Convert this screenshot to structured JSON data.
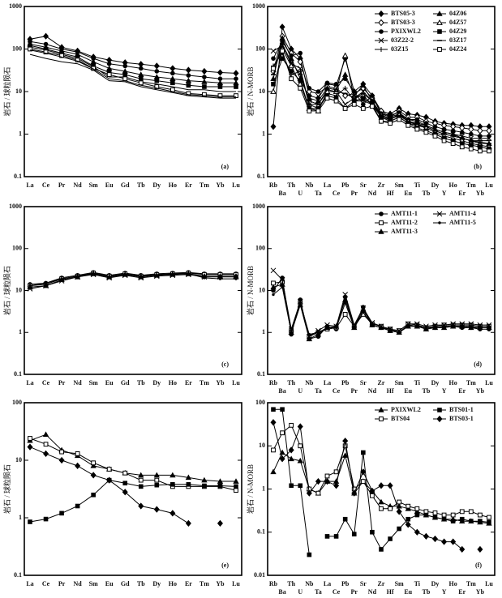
{
  "chart_data": [
    {
      "type": "line",
      "label": "(a)",
      "ylabel": "岩石 / 球粒陨石",
      "log_y": true,
      "categories": [
        "La",
        "Ce",
        "Pr",
        "Nd",
        "Sm",
        "Eu",
        "Gd",
        "Tb",
        "Dy",
        "Ho",
        "Er",
        "Tm",
        "Yb",
        "Lu"
      ],
      "ylim": [
        0.1,
        1000
      ],
      "yticks": [
        0.1,
        1,
        10,
        100,
        1000
      ],
      "series": [
        {
          "color": "#000",
          "marker": "diamond",
          "values": [
            170,
            200,
            110,
            90,
            65,
            55,
            48,
            44,
            40,
            35,
            32,
            30,
            28,
            27
          ]
        },
        {
          "color": "#000",
          "marker": "circle",
          "values": [
            150,
            130,
            100,
            85,
            60,
            45,
            40,
            35,
            30,
            27,
            24,
            22,
            20,
            20
          ]
        },
        {
          "color": "#000",
          "marker": "triangle",
          "values": [
            130,
            110,
            90,
            75,
            50,
            35,
            30,
            25,
            22,
            20,
            18,
            17,
            16,
            16
          ]
        },
        {
          "color": "#000",
          "marker": "square",
          "values": [
            120,
            100,
            80,
            65,
            40,
            28,
            25,
            20,
            18,
            16,
            14,
            13,
            13,
            13
          ]
        },
        {
          "color": "#000",
          "marker": "none",
          "values": [
            110,
            95,
            75,
            60,
            38,
            22,
            22,
            17,
            15,
            13,
            11,
            11,
            10,
            10
          ]
        },
        {
          "color": "#000",
          "marker": "square-open",
          "values": [
            100,
            85,
            70,
            55,
            35,
            25,
            20,
            16,
            13,
            11,
            9,
            8.5,
            8,
            8
          ]
        },
        {
          "color": "#000",
          "marker": "none",
          "values": [
            95,
            80,
            65,
            52,
            34,
            20,
            18,
            14,
            12,
            10,
            8.5,
            8,
            7.5,
            7.5
          ]
        },
        {
          "color": "#000",
          "marker": "none",
          "values": [
            75,
            60,
            50,
            45,
            32,
            18,
            17,
            13,
            11,
            9.5,
            8,
            7.5,
            7,
            7
          ]
        }
      ]
    },
    {
      "type": "line",
      "label": "(b)",
      "ylabel": "岩石 / N-MORB",
      "log_y": true,
      "legend": "upper right",
      "categories": [
        "Rb",
        "Ba",
        "Th",
        "U",
        "Nb",
        "Ta",
        "La",
        "Ce",
        "Pb",
        "Pr",
        "Sr",
        "Nd",
        "Zr",
        "Hf",
        "Sm",
        "Eu",
        "Ti",
        "Tb",
        "Dy",
        "Y",
        "Ho",
        "Er",
        "Tm",
        "Yb",
        "Lu"
      ],
      "ylim": [
        0.1,
        1000
      ],
      "yticks": [
        0.1,
        1,
        10,
        100,
        1000
      ],
      "series": [
        {
          "name": "BTS05-3",
          "color": "#000",
          "marker": "diamond",
          "values": [
            1.5,
            330,
            100,
            60,
            8,
            7,
            15,
            14,
            60,
            10,
            15,
            8,
            3.5,
            3,
            4,
            3,
            2.8,
            2.5,
            2,
            1.8,
            1.7,
            1.6,
            1.6,
            1.5,
            1.5
          ]
        },
        {
          "name": "BTS03-3",
          "color": "#000",
          "marker": "diamond-open",
          "values": [
            30,
            200,
            80,
            50,
            10,
            9,
            13,
            12,
            8,
            9,
            12,
            7,
            3.5,
            2.5,
            3.5,
            2.5,
            2.5,
            2,
            1.8,
            1.6,
            1.5,
            1.4,
            1.3,
            1.2,
            1.2
          ]
        },
        {
          "name": "PXIXWL2",
          "color": "#000",
          "marker": "circle",
          "values": [
            60,
            150,
            70,
            80,
            12,
            10,
            16,
            15,
            20,
            10,
            5,
            8,
            3,
            2.8,
            3.2,
            2.2,
            2.2,
            1.8,
            1.5,
            1.3,
            1.2,
            1.1,
            1,
            0.9,
            0.9
          ]
        },
        {
          "name": "03Z22-2",
          "color": "#000",
          "marker": "cross",
          "values": [
            90,
            120,
            45,
            35,
            5,
            5,
            10,
            10,
            5,
            7,
            10,
            6,
            2.5,
            2.2,
            3,
            2,
            1.8,
            1.6,
            1.3,
            1.1,
            1,
            0.9,
            0.8,
            0.8,
            0.8
          ]
        },
        {
          "name": "03Z15",
          "color": "#000",
          "marker": "plus",
          "values": [
            40,
            80,
            25,
            30,
            5,
            4,
            9,
            8,
            12,
            6,
            6,
            5,
            2,
            2,
            2.5,
            1.8,
            1.6,
            1.5,
            1.2,
            1,
            0.9,
            0.8,
            0.7,
            0.7,
            0.7
          ]
        },
        {
          "name": "04Z06",
          "color": "#000",
          "marker": "triangle",
          "values": [
            20,
            180,
            60,
            20,
            7,
            6,
            12,
            11,
            25,
            8,
            14,
            6,
            3,
            2.5,
            3,
            2.2,
            2,
            1.6,
            1.3,
            1.1,
            1,
            0.8,
            0.7,
            0.6,
            0.6
          ]
        },
        {
          "name": "04Z57",
          "color": "#000",
          "marker": "triangle-open",
          "values": [
            10,
            100,
            40,
            15,
            4,
            3.5,
            10,
            10,
            70,
            7,
            8,
            5,
            2.8,
            2.2,
            2.8,
            2,
            1.6,
            1.4,
            1.1,
            0.9,
            0.8,
            0.7,
            0.6,
            0.55,
            0.5
          ]
        },
        {
          "name": "04Z29",
          "color": "#000",
          "marker": "square",
          "values": [
            15,
            60,
            30,
            18,
            4,
            4,
            8,
            7,
            4,
            6,
            7,
            5,
            2.5,
            2,
            2.5,
            1.8,
            1.4,
            1.2,
            1,
            0.8,
            0.7,
            0.6,
            0.55,
            0.5,
            0.45
          ]
        },
        {
          "name": "03Z17",
          "color": "#000",
          "marker": "dash",
          "values": [
            25,
            130,
            50,
            25,
            6,
            5,
            11,
            10,
            9,
            7,
            9,
            6,
            2.8,
            2.3,
            2.7,
            2,
            1.7,
            1.5,
            1.2,
            1,
            0.9,
            0.8,
            0.7,
            0.65,
            0.6
          ]
        },
        {
          "name": "04Z24",
          "color": "#000",
          "marker": "square-open",
          "values": [
            35,
            90,
            20,
            12,
            3.5,
            3.5,
            7,
            6,
            4,
            5,
            4,
            4.5,
            2,
            1.8,
            2.2,
            1.6,
            1.3,
            1.1,
            0.9,
            0.7,
            0.6,
            0.5,
            0.45,
            0.4,
            0.4
          ]
        }
      ]
    },
    {
      "type": "line",
      "label": "(c)",
      "ylabel": "岩石 / 球粒陨石",
      "log_y": true,
      "categories": [
        "La",
        "Ce",
        "Pr",
        "Nd",
        "Sm",
        "Eu",
        "Gd",
        "Tb",
        "Dy",
        "Ho",
        "Er",
        "Tm",
        "Yb",
        "Lu"
      ],
      "ylim": [
        0.1,
        1000
      ],
      "yticks": [
        0.1,
        1,
        10,
        100,
        1000
      ],
      "series": [
        {
          "color": "#000",
          "marker": "circle",
          "values": [
            14,
            15,
            20,
            23,
            27,
            23,
            26,
            23,
            25,
            26,
            27,
            25,
            25,
            25
          ]
        },
        {
          "color": "#000",
          "marker": "square-open",
          "values": [
            13,
            14,
            19,
            22,
            26,
            22,
            25,
            22,
            24,
            25,
            26,
            24,
            24,
            24
          ]
        },
        {
          "color": "#000",
          "marker": "triangle",
          "values": [
            12,
            13,
            18,
            21,
            25,
            21,
            24,
            21,
            23,
            24,
            25,
            22,
            22,
            22
          ]
        },
        {
          "color": "#000",
          "marker": "cross",
          "values": [
            11,
            13,
            17,
            21,
            24,
            20,
            23,
            20,
            22,
            23,
            24,
            21,
            21,
            21
          ]
        },
        {
          "color": "#000",
          "marker": "dot",
          "values": [
            13,
            15,
            19,
            22,
            25,
            21,
            24,
            22,
            23,
            25,
            25,
            20,
            19,
            19
          ]
        }
      ]
    },
    {
      "type": "line",
      "label": "(d)",
      "ylabel": "岩石 / N-MORB",
      "log_y": true,
      "legend": "upper right",
      "categories": [
        "Rb",
        "Ba",
        "Th",
        "U",
        "Nb",
        "Ta",
        "La",
        "Ce",
        "Pb",
        "Pr",
        "Sr",
        "Nd",
        "Zr",
        "Hf",
        "Sm",
        "Eu",
        "Ti",
        "Tb",
        "Dy",
        "Y",
        "Ho",
        "Er",
        "Tm",
        "Yb",
        "Lu"
      ],
      "ylim": [
        0.1,
        1000
      ],
      "yticks": [
        0.1,
        1,
        10,
        100,
        1000
      ],
      "series": [
        {
          "name": "AMT11-1",
          "color": "#000",
          "marker": "circle",
          "values": [
            10,
            20,
            0.9,
            6,
            0.7,
            0.8,
            1.4,
            1.2,
            7,
            1.4,
            4,
            1.5,
            1.3,
            1.1,
            1,
            1.5,
            1.4,
            1.3,
            1.3,
            1.4,
            1.4,
            1.3,
            1.3,
            1.2,
            1.2
          ]
        },
        {
          "name": "AMT11-2",
          "color": "#000",
          "marker": "square-open",
          "values": [
            15,
            16,
            1.1,
            5,
            0.8,
            1,
            1.2,
            1.3,
            2.7,
            1.4,
            2.7,
            1.6,
            1.4,
            1.2,
            1.1,
            1.6,
            1.5,
            1.3,
            1.4,
            1.5,
            1.5,
            1.5,
            1.5,
            1.4,
            1.4
          ]
        },
        {
          "name": "AMT11-3",
          "color": "#000",
          "marker": "triangle",
          "values": [
            12,
            14,
            1,
            4.5,
            0.7,
            0.9,
            1.3,
            1.4,
            6,
            1.3,
            3.5,
            1.5,
            1.3,
            1.1,
            1,
            1.4,
            1.4,
            1.2,
            1.3,
            1.3,
            1.4,
            1.4,
            1.3,
            1.3,
            1.3
          ]
        },
        {
          "name": "AMT11-4",
          "color": "#000",
          "marker": "cross",
          "values": [
            30,
            18,
            1.2,
            5.5,
            0.8,
            1.1,
            1.5,
            1.4,
            8,
            1.5,
            3.8,
            1.7,
            1.4,
            1.2,
            1.1,
            1.6,
            1.6,
            1.4,
            1.5,
            1.5,
            1.6,
            1.6,
            1.6,
            1.5,
            1.5
          ]
        },
        {
          "name": "AMT11-5",
          "color": "#000",
          "marker": "dot",
          "values": [
            8,
            12,
            1,
            5,
            0.9,
            1,
            1.3,
            1.3,
            5,
            1.3,
            3,
            1.5,
            1.3,
            1.2,
            1,
            1.5,
            1.4,
            1.3,
            1.3,
            1.4,
            1.4,
            1.4,
            1.4,
            1.3,
            1.3
          ]
        }
      ]
    },
    {
      "type": "line",
      "label": "(e)",
      "ylabel": "岩石 / 球粒陨石",
      "log_y": true,
      "categories": [
        "La",
        "Ce",
        "Pr",
        "Nd",
        "Sm",
        "Eu",
        "Gd",
        "Tb",
        "Dy",
        "Ho",
        "Er",
        "Tm",
        "Yb",
        "Lu"
      ],
      "ylim": [
        0.1,
        100
      ],
      "yticks": [
        0.1,
        1,
        10,
        100
      ],
      "series": [
        {
          "color": "#000",
          "marker": "triangle",
          "values": [
            22,
            28,
            15,
            12,
            8,
            7,
            6,
            5.5,
            5.5,
            5.5,
            5,
            4.5,
            4.3,
            4.3
          ]
        },
        {
          "color": "#000",
          "marker": "square-open",
          "values": [
            24,
            19,
            14,
            13,
            9,
            7,
            6,
            4.5,
            4.5,
            3.5,
            3.5,
            3.5,
            3.5,
            3
          ]
        },
        {
          "color": "#000",
          "marker": "square",
          "values": [
            0.85,
            0.95,
            1.2,
            1.6,
            2.5,
            4.5,
            4,
            3.5,
            3.7,
            3.8,
            3.8,
            3.6,
            3.6,
            3.5
          ]
        },
        {
          "color": "#000",
          "marker": "diamond",
          "values": [
            17,
            13,
            10,
            8,
            5.5,
            4.5,
            2.8,
            1.6,
            1.4,
            1.2,
            0.8,
            null,
            0.8,
            null
          ]
        }
      ]
    },
    {
      "type": "line",
      "label": "(f)",
      "ylabel": "岩石 / N-MORB",
      "log_y": true,
      "legend": "upper right",
      "categories": [
        "Rb",
        "Ba",
        "Th",
        "U",
        "Nb",
        "Ta",
        "La",
        "Ce",
        "Pb",
        "Pr",
        "Sr",
        "Nd",
        "Zr",
        "Hf",
        "Sm",
        "Eu",
        "Ti",
        "Tb",
        "Dy",
        "Y",
        "Ho",
        "Er",
        "Tm",
        "Yb",
        "Lu"
      ],
      "ylim": [
        0.01,
        100
      ],
      "yticks": [
        0.01,
        0.1,
        1,
        10,
        100
      ],
      "series": [
        {
          "name": "PXIXWL2",
          "color": "#000",
          "marker": "triangle",
          "values": [
            2.5,
            7,
            5,
            4.5,
            1,
            0.8,
            1.5,
            1.5,
            6,
            0.8,
            1.5,
            0.9,
            0.5,
            0.4,
            0.4,
            0.35,
            0.3,
            0.25,
            0.22,
            0.2,
            0.2,
            0.18,
            0.18,
            0.17,
            0.16
          ]
        },
        {
          "name": "BTS04",
          "color": "#000",
          "marker": "square-open",
          "values": [
            8,
            20,
            30,
            10,
            1,
            0.8,
            2,
            2.5,
            10,
            1,
            1.5,
            0.7,
            0.35,
            0.35,
            0.5,
            0.4,
            0.35,
            0.3,
            0.28,
            0.25,
            0.25,
            0.3,
            0.3,
            0.25,
            0.22
          ]
        },
        {
          "name": "BTS01-1",
          "color": "#000",
          "marker": "square",
          "values": [
            70,
            70,
            1.2,
            1.2,
            0.03,
            null,
            0.08,
            0.08,
            0.2,
            0.09,
            7,
            0.1,
            0.04,
            0.07,
            0.12,
            0.2,
            0.25,
            0.25,
            0.22,
            0.2,
            0.18,
            0.2,
            0.18,
            0.18,
            0.17
          ]
        },
        {
          "name": "BTS03-1",
          "color": "#000",
          "marker": "diamond",
          "values": [
            35,
            5,
            8,
            28,
            0.8,
            1.5,
            1.5,
            1.2,
            13,
            0.8,
            2.5,
            0.9,
            1.2,
            1.2,
            0.3,
            0.15,
            0.1,
            0.08,
            0.07,
            0.06,
            0.06,
            0.04,
            null,
            0.04,
            null
          ]
        }
      ]
    }
  ]
}
